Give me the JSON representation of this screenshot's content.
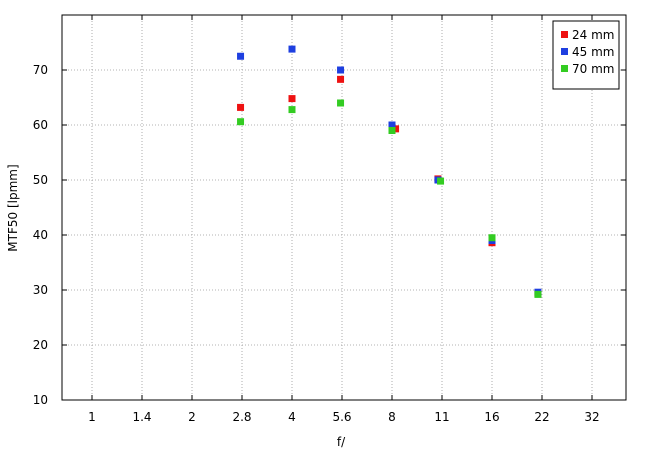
{
  "chart_data": {
    "type": "scatter",
    "title": "",
    "xlabel": "f/",
    "ylabel": "MTF50 [lpmm]",
    "x_scale": "log2 (f-stop series)",
    "x_ticks": [
      "1",
      "1.4",
      "2",
      "2.8",
      "4",
      "5.6",
      "8",
      "11",
      "16",
      "22",
      "32"
    ],
    "xlim": [
      0.84,
      38
    ],
    "ylim": [
      10,
      80
    ],
    "y_ticks": [
      10,
      20,
      30,
      40,
      50,
      60,
      70
    ],
    "grid": true,
    "legend_position": "top-right",
    "series": [
      {
        "name": "24 mm",
        "color": "#ee1111",
        "points": [
          {
            "x": 2.8,
            "y": 63.2
          },
          {
            "x": 4,
            "y": 64.8
          },
          {
            "x": 5.6,
            "y": 68.3
          },
          {
            "x": 8.2,
            "y": 59.3
          },
          {
            "x": 11,
            "y": 50.2
          },
          {
            "x": 16,
            "y": 38.6
          },
          {
            "x": 22,
            "y": 29.4
          }
        ]
      },
      {
        "name": "45 mm",
        "color": "#1e3fe0",
        "points": [
          {
            "x": 2.8,
            "y": 72.5
          },
          {
            "x": 4,
            "y": 73.8
          },
          {
            "x": 5.6,
            "y": 70.0
          },
          {
            "x": 8,
            "y": 60.0
          },
          {
            "x": 11,
            "y": 50.0
          },
          {
            "x": 16,
            "y": 39.0
          },
          {
            "x": 22,
            "y": 29.6
          }
        ]
      },
      {
        "name": "70 mm",
        "color": "#33cc22",
        "points": [
          {
            "x": 2.8,
            "y": 60.6
          },
          {
            "x": 4,
            "y": 62.8
          },
          {
            "x": 5.6,
            "y": 64.0
          },
          {
            "x": 8,
            "y": 59.0
          },
          {
            "x": 11.2,
            "y": 49.8
          },
          {
            "x": 16,
            "y": 39.5
          },
          {
            "x": 22,
            "y": 29.2
          }
        ]
      }
    ]
  }
}
